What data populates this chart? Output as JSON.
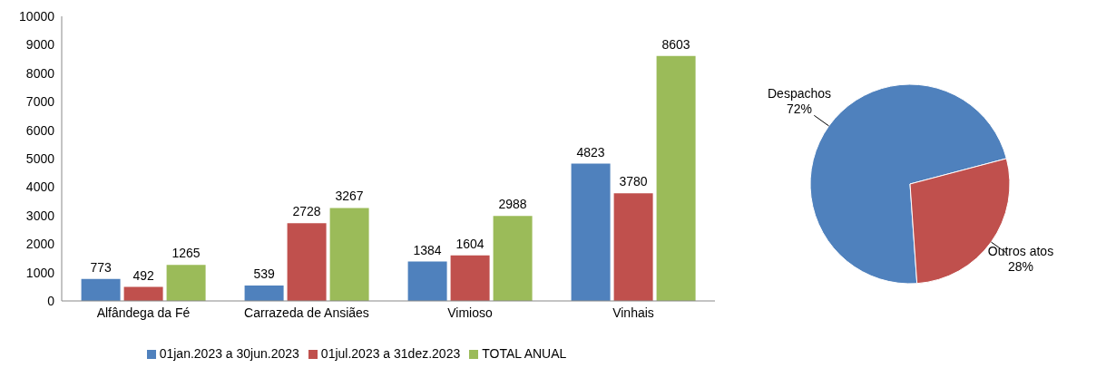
{
  "chart_data": [
    {
      "type": "bar",
      "categories": [
        "Alfândega da Fé",
        "Carrazeda de Ansiães",
        "Vimioso",
        "Vinhais"
      ],
      "series": [
        {
          "name": "01jan.2023 a 30jun.2023",
          "color": "#4f81bd",
          "values": [
            773,
            539,
            1384,
            4823
          ]
        },
        {
          "name": "01jul.2023 a 31dez.2023",
          "color": "#c0504d",
          "values": [
            492,
            2728,
            1604,
            3780
          ]
        },
        {
          "name": "TOTAL ANUAL",
          "color": "#9bbb59",
          "values": [
            1265,
            3267,
            2988,
            8603
          ]
        }
      ],
      "ylim": [
        0,
        10000
      ],
      "yticks": [
        0,
        1000,
        2000,
        3000,
        4000,
        5000,
        6000,
        7000,
        8000,
        9000,
        10000
      ],
      "legend": "bottom",
      "data_labels": true
    },
    {
      "type": "pie",
      "categories": [
        "Despachos",
        "Outros atos"
      ],
      "values": [
        72,
        28
      ],
      "colors": [
        "#4f81bd",
        "#c0504d"
      ],
      "value_labels": [
        "72%",
        "28%"
      ],
      "legend": false
    }
  ]
}
